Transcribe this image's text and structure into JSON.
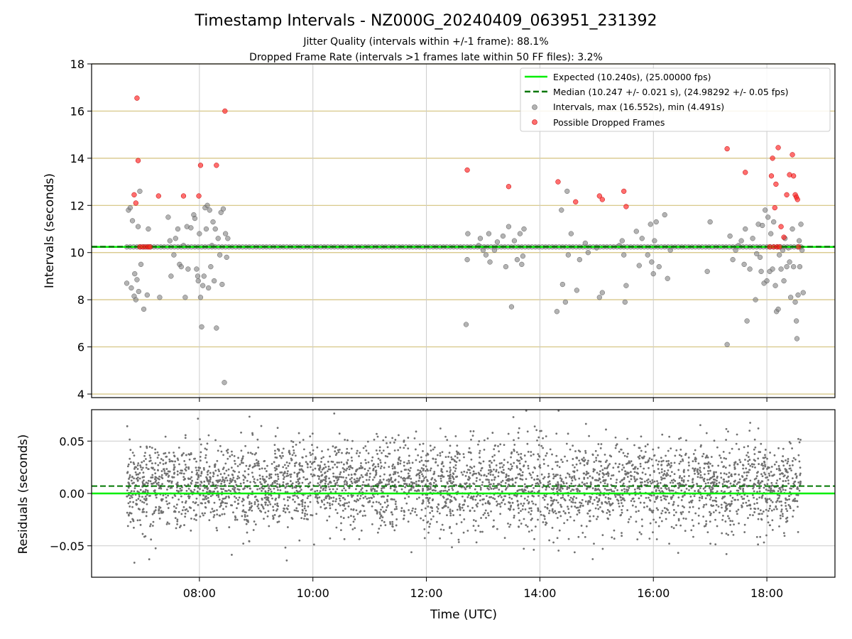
{
  "figure": {
    "title": "Timestamp Intervals - NZ000G_20240409_063951_231392",
    "subtitle_jitter": "Jitter Quality (intervals within +/-1 frame): 88.1%",
    "subtitle_dropped": "Dropped Frame Rate (intervals >1 frames late within 50 FF files): 3.2%"
  },
  "chart_data": [
    {
      "type": "scatter",
      "panel": "intervals",
      "ylabel": "Intervals (seconds)",
      "xlabel": "",
      "xlim": [
        6.1,
        19.2
      ],
      "ylim": [
        3.85,
        18
      ],
      "yticks": [
        4,
        6,
        8,
        10,
        12,
        14,
        16,
        18
      ],
      "ytick_labels": [
        "4",
        "6",
        "8",
        "10",
        "12",
        "14",
        "16",
        "18"
      ],
      "xticks": [
        8,
        10,
        12,
        14,
        16,
        18
      ],
      "horizontal_grid": "on (gold)",
      "vertical_grid": "on",
      "legend": "top-right",
      "colors": {
        "expected": "#00ee00",
        "median": "#007700",
        "intervals": "#808080",
        "dropped": "#ff2020",
        "hgrid": "#d4c27e",
        "vgrid": "#cccccc"
      },
      "expected_line": {
        "label": "Expected (10.240s), (25.00000 fps)",
        "value": 10.24
      },
      "median_line": {
        "label": "Median (10.247 +/- 0.021 s), (24.98292 +/- 0.05 fps)",
        "value": 10.247
      },
      "series": [
        {
          "name": "Intervals, max (16.552s), min (4.491s)",
          "points": [
            [
              6.72,
              8.7
            ],
            [
              6.75,
              11.8
            ],
            [
              6.78,
              11.9
            ],
            [
              6.8,
              8.5
            ],
            [
              6.82,
              11.35
            ],
            [
              6.85,
              8.15
            ],
            [
              6.86,
              9.1
            ],
            [
              6.88,
              8.0
            ],
            [
              6.9,
              8.85
            ],
            [
              6.92,
              11.1
            ],
            [
              6.93,
              8.35
            ],
            [
              6.95,
              12.6
            ],
            [
              6.97,
              9.5
            ],
            [
              7.02,
              7.6
            ],
            [
              7.08,
              8.2
            ],
            [
              7.1,
              11.0
            ],
            [
              7.3,
              8.1
            ],
            [
              7.45,
              11.5
            ],
            [
              7.48,
              10.5
            ],
            [
              7.5,
              9.0
            ],
            [
              7.55,
              9.9
            ],
            [
              7.58,
              10.6
            ],
            [
              7.62,
              11.0
            ],
            [
              7.65,
              9.5
            ],
            [
              7.68,
              9.4
            ],
            [
              7.72,
              10.3
            ],
            [
              7.75,
              8.1
            ],
            [
              7.78,
              11.1
            ],
            [
              7.8,
              9.3
            ],
            [
              7.85,
              11.05
            ],
            [
              7.9,
              11.6
            ],
            [
              7.92,
              11.45
            ],
            [
              7.95,
              9.3
            ],
            [
              7.97,
              9.0
            ],
            [
              7.98,
              8.8
            ],
            [
              8.0,
              10.8
            ],
            [
              8.02,
              8.1
            ],
            [
              8.04,
              6.85
            ],
            [
              8.06,
              8.6
            ],
            [
              8.08,
              9.0
            ],
            [
              8.1,
              11.9
            ],
            [
              8.12,
              11.0
            ],
            [
              8.14,
              12.0
            ],
            [
              8.16,
              8.5
            ],
            [
              8.18,
              11.8
            ],
            [
              8.2,
              9.4
            ],
            [
              8.22,
              10.3
            ],
            [
              8.24,
              11.3
            ],
            [
              8.26,
              8.8
            ],
            [
              8.28,
              11.0
            ],
            [
              8.3,
              6.8
            ],
            [
              8.33,
              10.6
            ],
            [
              8.36,
              9.9
            ],
            [
              8.38,
              11.7
            ],
            [
              8.4,
              8.65
            ],
            [
              8.42,
              11.85
            ],
            [
              8.44,
              4.49
            ],
            [
              8.46,
              10.8
            ],
            [
              8.48,
              9.8
            ],
            [
              8.5,
              10.6
            ],
            [
              12.7,
              6.95
            ],
            [
              12.72,
              9.7
            ],
            [
              12.73,
              10.8
            ],
            [
              12.92,
              10.3
            ],
            [
              12.95,
              10.6
            ],
            [
              13.0,
              10.1
            ],
            [
              13.05,
              9.9
            ],
            [
              13.1,
              10.8
            ],
            [
              13.12,
              9.6
            ],
            [
              13.2,
              10.1
            ],
            [
              13.25,
              10.45
            ],
            [
              13.35,
              10.7
            ],
            [
              13.4,
              9.4
            ],
            [
              13.45,
              11.1
            ],
            [
              13.5,
              7.7
            ],
            [
              13.55,
              10.5
            ],
            [
              13.6,
              9.7
            ],
            [
              13.65,
              10.8
            ],
            [
              13.68,
              9.5
            ],
            [
              13.7,
              9.85
            ],
            [
              13.72,
              11.0
            ],
            [
              14.3,
              7.5
            ],
            [
              14.38,
              11.8
            ],
            [
              14.4,
              8.65
            ],
            [
              14.45,
              7.9
            ],
            [
              14.48,
              12.6
            ],
            [
              14.5,
              9.9
            ],
            [
              14.55,
              10.8
            ],
            [
              14.65,
              8.4
            ],
            [
              14.7,
              9.7
            ],
            [
              14.8,
              10.4
            ],
            [
              14.85,
              10.0
            ],
            [
              15.0,
              10.2
            ],
            [
              15.05,
              8.1
            ],
            [
              15.1,
              8.3
            ],
            [
              15.4,
              10.3
            ],
            [
              15.45,
              10.5
            ],
            [
              15.48,
              9.9
            ],
            [
              15.5,
              7.9
            ],
            [
              15.52,
              8.6
            ],
            [
              15.7,
              10.9
            ],
            [
              15.75,
              9.45
            ],
            [
              15.8,
              10.6
            ],
            [
              15.9,
              9.9
            ],
            [
              15.95,
              11.2
            ],
            [
              15.97,
              9.6
            ],
            [
              16.0,
              9.1
            ],
            [
              16.02,
              10.5
            ],
            [
              16.05,
              11.3
            ],
            [
              16.1,
              9.4
            ],
            [
              16.2,
              11.6
            ],
            [
              16.25,
              8.9
            ],
            [
              16.3,
              10.1
            ],
            [
              16.95,
              9.2
            ],
            [
              17.0,
              11.3
            ],
            [
              17.3,
              6.1
            ],
            [
              17.35,
              10.7
            ],
            [
              17.4,
              9.7
            ],
            [
              17.45,
              10.1
            ],
            [
              17.5,
              10.3
            ],
            [
              17.55,
              10.5
            ],
            [
              17.6,
              9.5
            ],
            [
              17.62,
              11.0
            ],
            [
              17.65,
              7.1
            ],
            [
              17.7,
              9.3
            ],
            [
              17.75,
              10.6
            ],
            [
              17.8,
              8.0
            ],
            [
              17.82,
              9.95
            ],
            [
              17.85,
              11.2
            ],
            [
              17.88,
              9.8
            ],
            [
              17.9,
              9.2
            ],
            [
              17.92,
              11.15
            ],
            [
              17.95,
              8.7
            ],
            [
              17.97,
              11.8
            ],
            [
              18.0,
              8.8
            ],
            [
              18.02,
              11.5
            ],
            [
              18.05,
              9.2
            ],
            [
              18.07,
              10.8
            ],
            [
              18.1,
              9.3
            ],
            [
              18.12,
              11.3
            ],
            [
              18.15,
              8.6
            ],
            [
              18.17,
              7.5
            ],
            [
              18.2,
              7.6
            ],
            [
              18.22,
              9.9
            ],
            [
              18.25,
              9.3
            ],
            [
              18.28,
              10.1
            ],
            [
              18.3,
              8.8
            ],
            [
              18.32,
              10.6
            ],
            [
              18.35,
              9.4
            ],
            [
              18.38,
              10.2
            ],
            [
              18.4,
              9.6
            ],
            [
              18.42,
              8.1
            ],
            [
              18.45,
              11.0
            ],
            [
              18.47,
              9.4
            ],
            [
              18.5,
              7.9
            ],
            [
              18.52,
              7.1
            ],
            [
              18.53,
              6.35
            ],
            [
              18.55,
              8.2
            ],
            [
              18.57,
              10.5
            ],
            [
              18.58,
              9.4
            ],
            [
              18.6,
              11.2
            ],
            [
              18.62,
              10.1
            ],
            [
              18.64,
              8.3
            ]
          ],
          "band": {
            "x_start": 6.72,
            "x_end": 18.6,
            "value": 10.24
          }
        },
        {
          "name": "Possible Dropped Frames",
          "points": [
            [
              6.85,
              12.45
            ],
            [
              6.88,
              12.1
            ],
            [
              6.9,
              16.55
            ],
            [
              6.92,
              13.9
            ],
            [
              6.95,
              10.24
            ],
            [
              7.0,
              10.24
            ],
            [
              7.05,
              10.24
            ],
            [
              7.1,
              10.24
            ],
            [
              7.13,
              10.24
            ],
            [
              7.28,
              12.4
            ],
            [
              7.72,
              12.4
            ],
            [
              7.99,
              12.4
            ],
            [
              8.02,
              13.7
            ],
            [
              8.3,
              13.7
            ],
            [
              8.45,
              16.0
            ],
            [
              12.72,
              13.5
            ],
            [
              13.45,
              12.8
            ],
            [
              14.32,
              13.0
            ],
            [
              14.63,
              12.15
            ],
            [
              15.05,
              12.4
            ],
            [
              15.1,
              12.25
            ],
            [
              15.48,
              12.6
            ],
            [
              15.52,
              11.95
            ],
            [
              17.3,
              14.4
            ],
            [
              17.62,
              13.4
            ],
            [
              18.05,
              10.24
            ],
            [
              18.08,
              13.25
            ],
            [
              18.1,
              14.0
            ],
            [
              18.12,
              10.24
            ],
            [
              18.14,
              11.9
            ],
            [
              18.16,
              12.9
            ],
            [
              18.18,
              10.24
            ],
            [
              18.2,
              14.45
            ],
            [
              18.22,
              10.24
            ],
            [
              18.25,
              11.1
            ],
            [
              18.3,
              10.65
            ],
            [
              18.35,
              12.45
            ],
            [
              18.4,
              13.3
            ],
            [
              18.45,
              14.15
            ],
            [
              18.47,
              13.25
            ],
            [
              18.5,
              12.45
            ],
            [
              18.52,
              12.35
            ],
            [
              18.54,
              12.25
            ],
            [
              18.56,
              10.24
            ]
          ]
        }
      ]
    },
    {
      "type": "scatter",
      "panel": "residuals",
      "ylabel": "Residuals (seconds)",
      "xlabel": "Time (UTC)",
      "xlim": [
        6.1,
        19.2
      ],
      "ylim": [
        -0.08,
        0.08
      ],
      "yticks": [
        -0.05,
        0.0,
        0.05
      ],
      "ytick_labels": [
        "−0.05",
        "0.00",
        "0.05"
      ],
      "xticks": [
        8,
        10,
        12,
        14,
        16,
        18
      ],
      "xtick_labels": [
        "08:00",
        "10:00",
        "12:00",
        "14:00",
        "16:00",
        "18:00"
      ],
      "grid": "on",
      "zero_line": 0.0,
      "median_offset": 0.007,
      "residual_spread_std": 0.021,
      "x_range": [
        6.72,
        18.6
      ],
      "point_count": 4000,
      "color": "#707070"
    }
  ]
}
